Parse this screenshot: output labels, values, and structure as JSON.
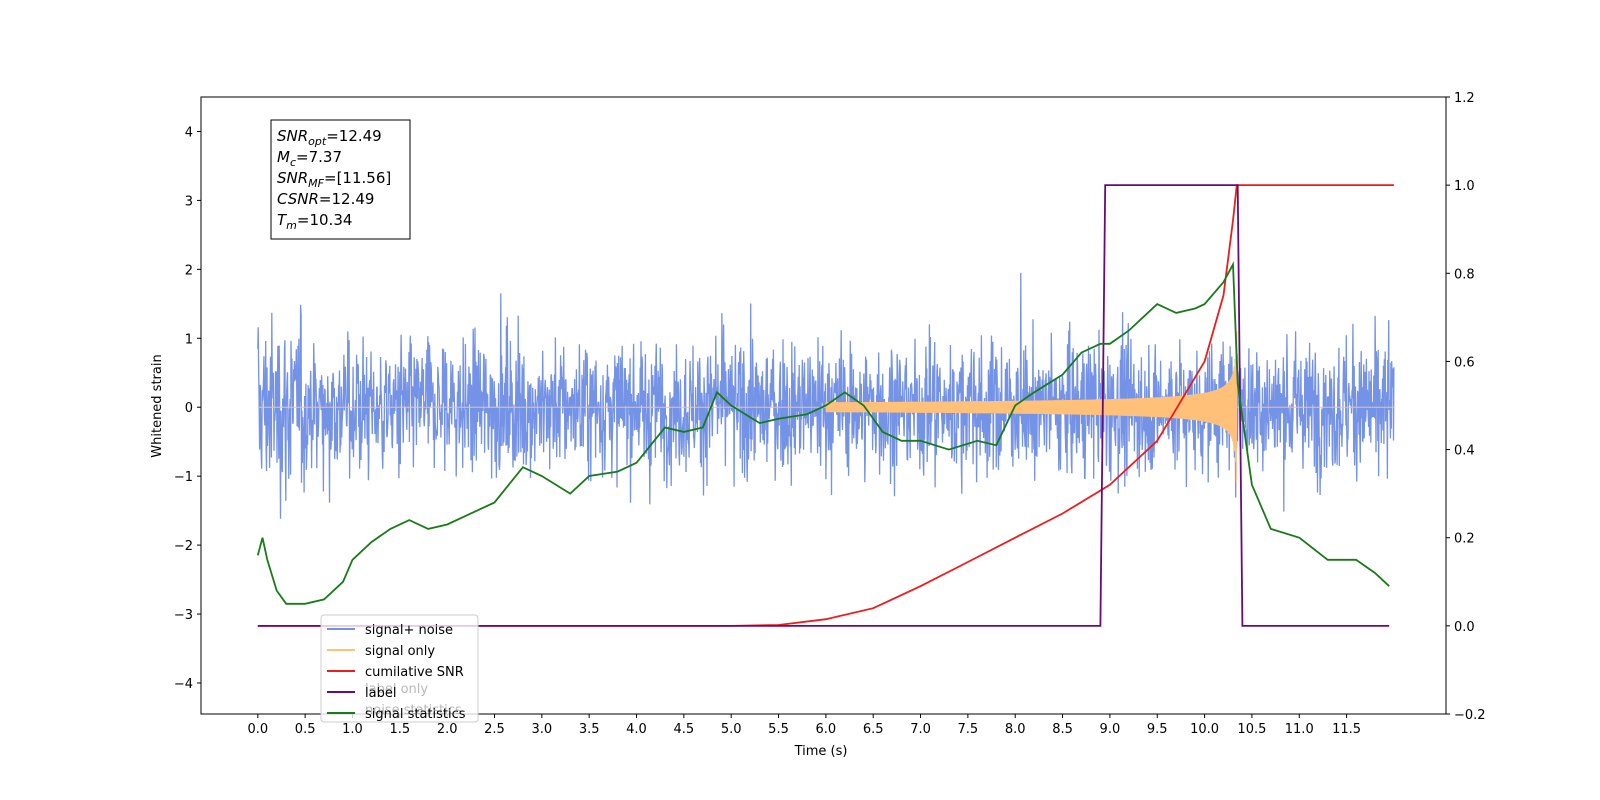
{
  "chart_data": {
    "type": "line",
    "xlabel": "Time (s)",
    "ylabel": "Whitened strain",
    "xlim": [
      -0.6,
      12.55
    ],
    "ylim": [
      -4.45,
      4.5
    ],
    "y2lim": [
      -0.2,
      1.2
    ],
    "xticks": [
      0.0,
      0.5,
      1.0,
      1.5,
      2.0,
      2.5,
      3.0,
      3.5,
      4.0,
      4.5,
      5.0,
      5.5,
      6.0,
      6.5,
      7.0,
      7.5,
      8.0,
      8.5,
      9.0,
      9.5,
      10.0,
      10.5,
      11.0,
      11.5
    ],
    "xtick_labels": [
      "0.0",
      "0.5",
      "1.0",
      "1.5",
      "2.0",
      "2.5",
      "3.0",
      "3.5",
      "4.0",
      "4.5",
      "5.0",
      "5.5",
      "6.0",
      "6.5",
      "7.0",
      "7.5",
      "8.0",
      "8.5",
      "9.0",
      "9.5",
      "10.0",
      "10.5",
      "11.0",
      "11.5"
    ],
    "yticks": [
      -4,
      -3,
      -2,
      -1,
      0,
      1,
      2,
      3,
      4
    ],
    "ytick_labels": [
      "−4",
      "−3",
      "−2",
      "−1",
      "0",
      "1",
      "2",
      "3",
      "4"
    ],
    "y2ticks": [
      -0.2,
      0.0,
      0.2,
      0.4,
      0.6,
      0.8,
      1.0,
      1.2
    ],
    "y2tick_labels": [
      "−0.2",
      "0.0",
      "0.2",
      "0.4",
      "0.6",
      "0.8",
      "1.0",
      "1.2"
    ],
    "grid": false,
    "legend_position": "bottom-left",
    "legend": [
      {
        "label": "signal+ noise",
        "color": "#7492e6"
      },
      {
        "label": "signal only",
        "color": "#ffc07a"
      },
      {
        "label": "cumilative SNR",
        "color": "#ee1c1c"
      },
      {
        "label": "label",
        "color": "#6a0a78"
      },
      {
        "label": "signal statistics",
        "color": "#1a7a1a"
      }
    ],
    "legend_overlap_text": [
      "label only",
      "noise statistics"
    ],
    "annotation": [
      {
        "sym": "SNR",
        "sub": "opt",
        "value": "=12.49"
      },
      {
        "sym": "M",
        "sub": "c",
        "value": "=7.37"
      },
      {
        "sym": "SNR",
        "sub": "MF",
        "value": "=[11.56]"
      },
      {
        "sym": "CSNR",
        "sub": "",
        "value": "=12.49"
      },
      {
        "sym": "T",
        "sub": "m",
        "value": "=10.34"
      }
    ],
    "series": [
      {
        "name": "signal+ noise",
        "axis": "left",
        "color": "#7492e6",
        "description_points": {
          "x": [
            0.0,
            12.0
          ],
          "noise_sigma": 0.9,
          "noise_sigma_left_edge": 1.2
        }
      },
      {
        "name": "signal only",
        "axis": "left",
        "color": "#ffc07a",
        "chirp": {
          "start": 6.0,
          "end": 10.34,
          "peak_amplitude": 1.1
        }
      },
      {
        "name": "cumilative SNR",
        "axis": "right",
        "color": "#ee1c1c",
        "x": [
          0.0,
          5.0,
          5.5,
          6.0,
          6.5,
          7.0,
          7.5,
          8.0,
          8.5,
          9.0,
          9.5,
          10.0,
          10.2,
          10.3,
          10.34,
          12.0
        ],
        "y": [
          0.0,
          0.0,
          0.002,
          0.015,
          0.04,
          0.09,
          0.145,
          0.2,
          0.255,
          0.32,
          0.42,
          0.6,
          0.75,
          0.92,
          1.0,
          1.0
        ]
      },
      {
        "name": "label",
        "axis": "right",
        "color": "#6a0a78",
        "x": [
          0.0,
          8.9,
          8.95,
          10.35,
          10.4,
          11.95
        ],
        "y": [
          0.0,
          0.0,
          1.0,
          1.0,
          0.0,
          0.0
        ]
      },
      {
        "name": "signal statistics",
        "axis": "right",
        "color": "#1a7a1a",
        "x": [
          0.0,
          0.05,
          0.1,
          0.2,
          0.3,
          0.5,
          0.7,
          0.9,
          1.0,
          1.2,
          1.4,
          1.6,
          1.8,
          2.0,
          2.2,
          2.5,
          2.8,
          3.0,
          3.3,
          3.5,
          3.8,
          4.0,
          4.3,
          4.5,
          4.7,
          4.85,
          5.0,
          5.3,
          5.5,
          5.8,
          6.0,
          6.2,
          6.4,
          6.6,
          6.8,
          7.0,
          7.3,
          7.6,
          7.8,
          8.0,
          8.2,
          8.5,
          8.7,
          8.9,
          9.0,
          9.2,
          9.5,
          9.7,
          9.9,
          10.0,
          10.2,
          10.3,
          10.35,
          10.5,
          10.7,
          11.0,
          11.3,
          11.6,
          11.8,
          11.95
        ],
        "y": [
          0.16,
          0.2,
          0.15,
          0.08,
          0.05,
          0.05,
          0.06,
          0.1,
          0.15,
          0.19,
          0.22,
          0.24,
          0.22,
          0.23,
          0.25,
          0.28,
          0.36,
          0.34,
          0.3,
          0.34,
          0.35,
          0.37,
          0.45,
          0.44,
          0.45,
          0.53,
          0.5,
          0.46,
          0.47,
          0.48,
          0.5,
          0.53,
          0.5,
          0.44,
          0.42,
          0.42,
          0.4,
          0.42,
          0.41,
          0.5,
          0.53,
          0.57,
          0.62,
          0.64,
          0.64,
          0.67,
          0.73,
          0.71,
          0.72,
          0.73,
          0.78,
          0.82,
          0.55,
          0.32,
          0.22,
          0.2,
          0.15,
          0.15,
          0.12,
          0.09
        ]
      }
    ]
  }
}
